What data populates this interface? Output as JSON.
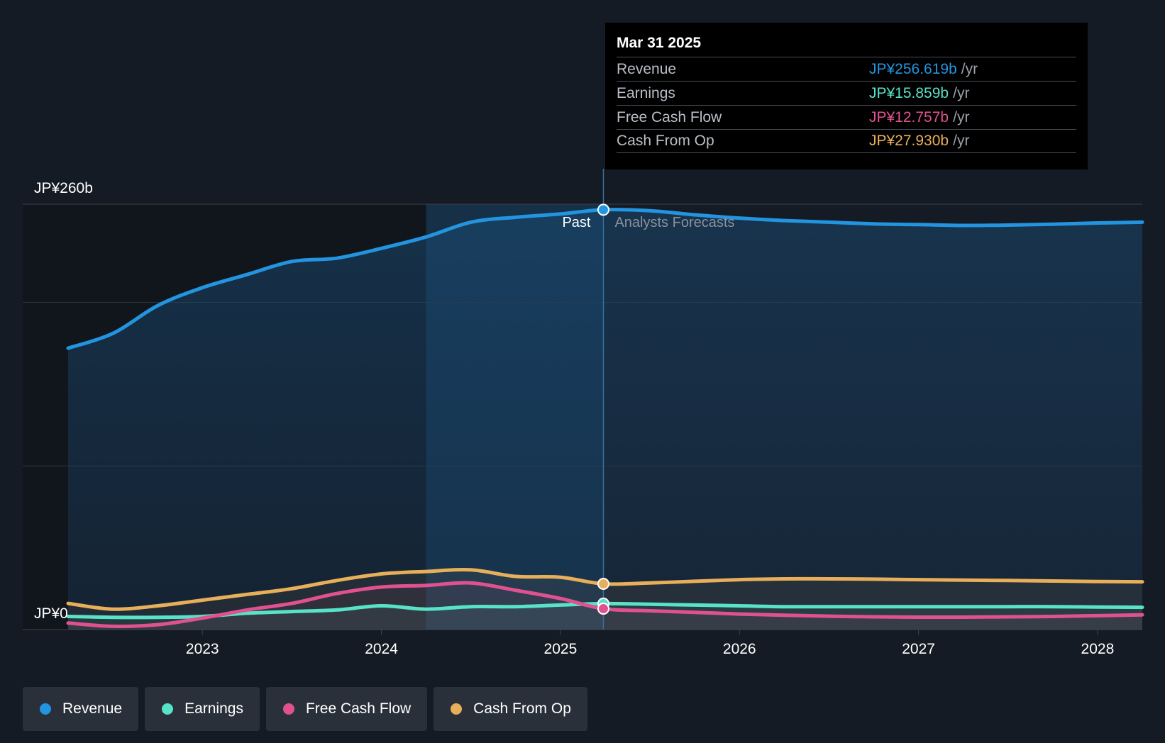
{
  "chart_data": {
    "type": "line",
    "x_range": [
      2022.25,
      2028.25
    ],
    "y_range": [
      0,
      260
    ],
    "y_axis_labels": {
      "top": "JP¥260b",
      "bottom": "JP¥0"
    },
    "x_ticks": [
      "2023",
      "2024",
      "2025",
      "2026",
      "2027",
      "2028"
    ],
    "x_tick_values": [
      2023,
      2024,
      2025,
      2026,
      2027,
      2028
    ],
    "divider_x": 2025.24,
    "highlight_start_x": 2024.25,
    "region_labels": {
      "past": "Past",
      "forecast": "Analysts Forecasts"
    },
    "series": [
      {
        "name": "Revenue",
        "color": "#2394df",
        "fill": true,
        "x": [
          2022.25,
          2022.5,
          2022.75,
          2023,
          2023.25,
          2023.5,
          2023.75,
          2024,
          2024.25,
          2024.5,
          2024.75,
          2025,
          2025.24,
          2025.5,
          2025.75,
          2026,
          2026.25,
          2026.5,
          2026.75,
          2027,
          2027.25,
          2027.5,
          2027.75,
          2028,
          2028.25
        ],
        "values": [
          172,
          181,
          198,
          209,
          217,
          225,
          227,
          233,
          240,
          249,
          252,
          254,
          256.6,
          256,
          253.5,
          251.5,
          250,
          249,
          248,
          247.5,
          247,
          247.2,
          247.8,
          248.5,
          249
        ]
      },
      {
        "name": "Earnings",
        "color": "#58e2c8",
        "x": [
          2022.25,
          2022.5,
          2022.75,
          2023,
          2023.25,
          2023.5,
          2023.75,
          2024,
          2024.25,
          2024.5,
          2024.75,
          2025,
          2025.24,
          2025.5,
          2025.75,
          2026,
          2026.25,
          2026.5,
          2026.75,
          2027,
          2027.25,
          2027.5,
          2027.75,
          2028,
          2028.25
        ],
        "values": [
          8,
          7.5,
          7.5,
          8,
          10,
          11,
          12,
          14.5,
          12.5,
          14,
          14,
          15,
          15.859,
          15.5,
          15,
          14.5,
          14,
          14,
          14,
          14,
          14,
          14,
          14,
          13.8,
          13.6
        ]
      },
      {
        "name": "Free Cash Flow",
        "color": "#e0528f",
        "x": [
          2022.25,
          2022.5,
          2022.75,
          2023,
          2023.25,
          2023.5,
          2023.75,
          2024,
          2024.25,
          2024.5,
          2024.75,
          2025,
          2025.24,
          2025.5,
          2025.75,
          2026,
          2026.25,
          2026.5,
          2026.75,
          2027,
          2027.25,
          2027.5,
          2027.75,
          2028,
          2028.25
        ],
        "values": [
          4,
          2,
          3,
          7,
          12,
          16,
          22,
          26,
          27,
          28.5,
          24,
          19,
          12.757,
          11.5,
          10.5,
          9.5,
          8.8,
          8.2,
          7.8,
          7.6,
          7.6,
          7.8,
          8,
          8.5,
          9
        ]
      },
      {
        "name": "Cash From Op",
        "color": "#e8af5a",
        "x": [
          2022.25,
          2022.5,
          2022.75,
          2023,
          2023.25,
          2023.5,
          2023.75,
          2024,
          2024.25,
          2024.5,
          2024.75,
          2025,
          2025.24,
          2025.5,
          2025.75,
          2026,
          2026.25,
          2026.5,
          2026.75,
          2027,
          2027.25,
          2027.5,
          2027.75,
          2028,
          2028.25
        ],
        "values": [
          16,
          12.5,
          14.5,
          18,
          21.5,
          25,
          30,
          34,
          35.5,
          36.5,
          32.5,
          32,
          27.93,
          28.5,
          29.5,
          30.5,
          31,
          31,
          30.8,
          30.5,
          30.2,
          30,
          29.7,
          29.4,
          29.2
        ]
      }
    ]
  },
  "tooltip": {
    "date": "Mar 31 2025",
    "unit": "/yr",
    "rows": [
      {
        "label": "Revenue",
        "value": "JP¥256.619b",
        "color": "#2394df"
      },
      {
        "label": "Earnings",
        "value": "JP¥15.859b",
        "color": "#58e2c8"
      },
      {
        "label": "Free Cash Flow",
        "value": "JP¥12.757b",
        "color": "#e0528f"
      },
      {
        "label": "Cash From Op",
        "value": "JP¥27.930b",
        "color": "#e8af5a"
      }
    ]
  },
  "legend": [
    {
      "label": "Revenue",
      "color": "#2394df"
    },
    {
      "label": "Earnings",
      "color": "#58e2c8"
    },
    {
      "label": "Free Cash Flow",
      "color": "#e0528f"
    },
    {
      "label": "Cash From Op",
      "color": "#e8af5a"
    }
  ]
}
